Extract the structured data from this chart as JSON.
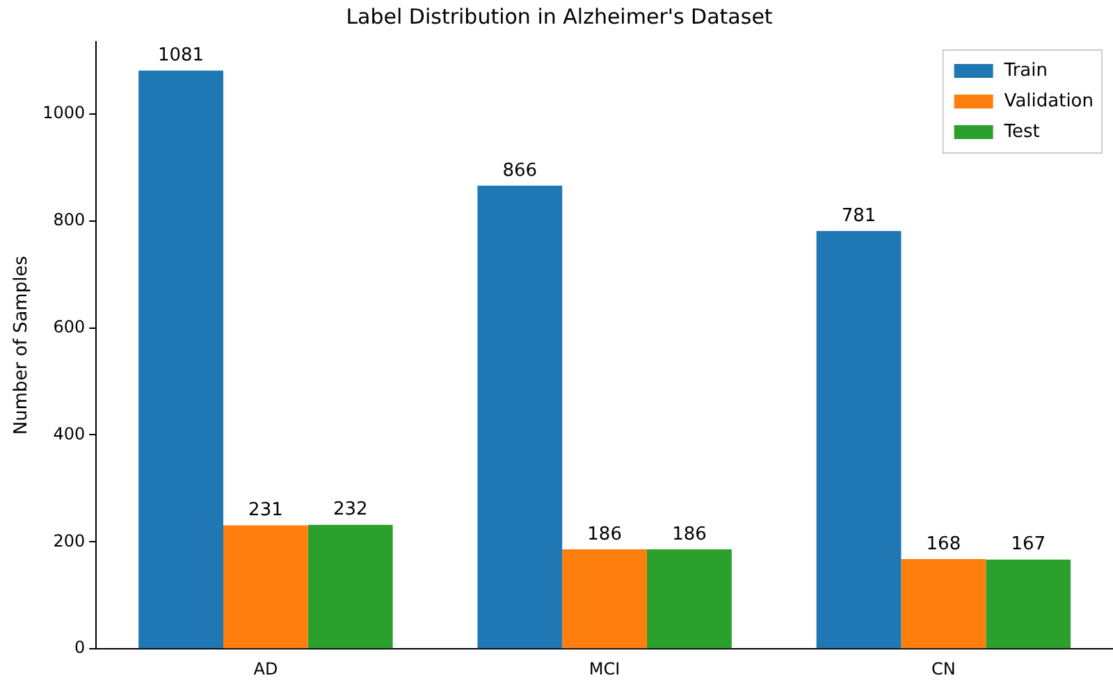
{
  "chart_data": {
    "type": "bar",
    "title": "Label Distribution in Alzheimer's Dataset",
    "ylabel": "Number of Samples",
    "categories": [
      "AD",
      "MCI",
      "CN"
    ],
    "series": [
      {
        "name": "Train",
        "color": "#1f77b4",
        "values": [
          1081,
          866,
          781
        ]
      },
      {
        "name": "Validation",
        "color": "#ff7f0e",
        "values": [
          231,
          186,
          168
        ]
      },
      {
        "name": "Test",
        "color": "#2ca02c",
        "values": [
          232,
          186,
          167
        ]
      }
    ],
    "ylim": [
      0,
      1135
    ],
    "yticks": [
      0,
      200,
      400,
      600,
      800,
      1000
    ],
    "grid": false,
    "legend": "top right",
    "data_labels": true
  }
}
